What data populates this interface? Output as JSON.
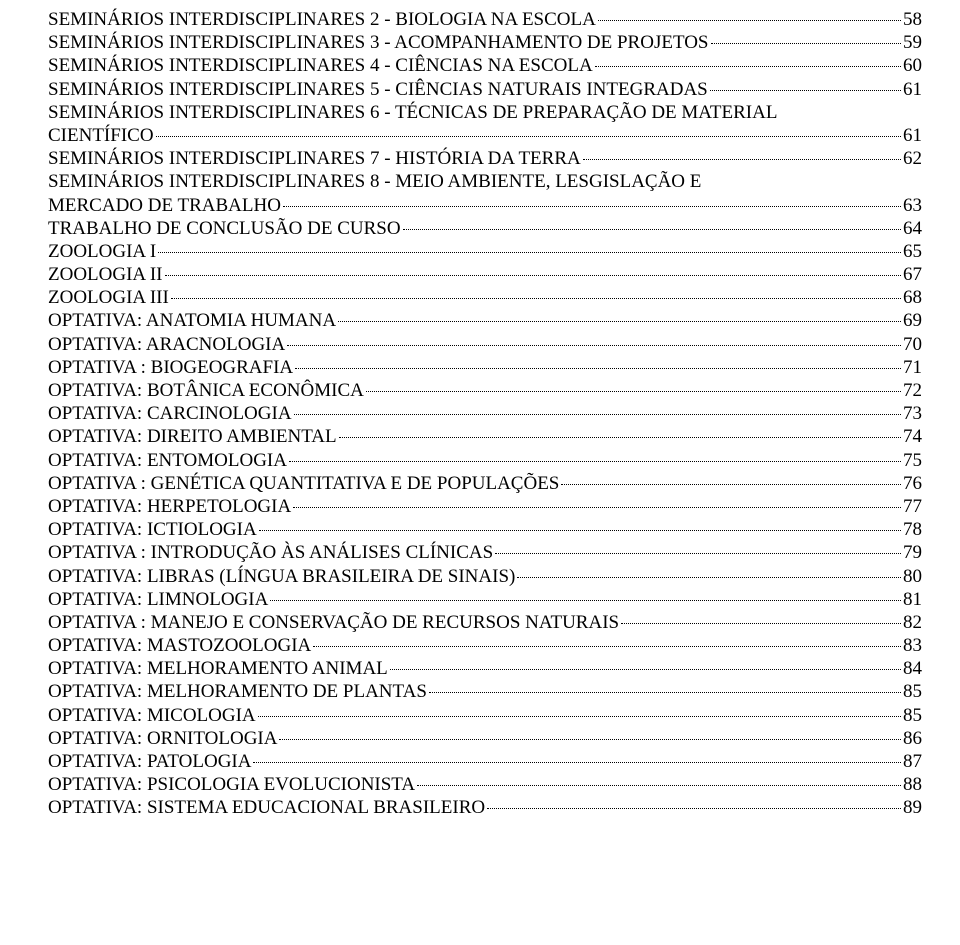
{
  "font_family": "Times New Roman",
  "font_size_pt": 14,
  "text_color": "#000000",
  "background_color": "#ffffff",
  "leader_style": "dotted",
  "entries": [
    {
      "title": "SEMINÁRIOS INTERDISCIPLINARES 2 - BIOLOGIA NA ESCOLA",
      "page": "58"
    },
    {
      "title": "SEMINÁRIOS INTERDISCIPLINARES 3 - ACOMPANHAMENTO DE PROJETOS",
      "page": "59"
    },
    {
      "title": "SEMINÁRIOS INTERDISCIPLINARES 4 - CIÊNCIAS NA ESCOLA",
      "page": "60"
    },
    {
      "title": "SEMINÁRIOS INTERDISCIPLINARES 5 - CIÊNCIAS NATURAIS INTEGRADAS",
      "page": "61"
    },
    {
      "title_line1": "SEMINÁRIOS INTERDISCIPLINARES 6 - TÉCNICAS DE PREPARAÇÃO DE MATERIAL",
      "title_line2": "CIENTÍFICO",
      "page": "61",
      "wrapped": true
    },
    {
      "title": "SEMINÁRIOS INTERDISCIPLINARES 7 - HISTÓRIA DA TERRA",
      "page": "62"
    },
    {
      "title_line1": "SEMINÁRIOS INTERDISCIPLINARES 8 - MEIO AMBIENTE, LESGISLAÇÃO E",
      "title_line2": "MERCADO DE TRABALHO",
      "page": "63",
      "wrapped": true
    },
    {
      "title": "TRABALHO DE CONCLUSÃO DE CURSO",
      "page": "64"
    },
    {
      "title": "ZOOLOGIA I",
      "page": "65"
    },
    {
      "title": "ZOOLOGIA II",
      "page": "67"
    },
    {
      "title": "ZOOLOGIA III",
      "page": "68"
    },
    {
      "title": "OPTATIVA: ANATOMIA HUMANA",
      "page": "69"
    },
    {
      "title": "OPTATIVA: ARACNOLOGIA",
      "page": "70"
    },
    {
      "title": "OPTATIVA : BIOGEOGRAFIA",
      "page": "71"
    },
    {
      "title": "OPTATIVA: BOTÂNICA ECONÔMICA",
      "page": "72"
    },
    {
      "title": "OPTATIVA: CARCINOLOGIA",
      "page": "73"
    },
    {
      "title": "OPTATIVA: DIREITO AMBIENTAL",
      "page": "74"
    },
    {
      "title": "OPTATIVA: ENTOMOLOGIA",
      "page": "75"
    },
    {
      "title": "OPTATIVA : GENÉTICA QUANTITATIVA E DE POPULAÇÕES",
      "page": "76"
    },
    {
      "title": "OPTATIVA: HERPETOLOGIA",
      "page": "77"
    },
    {
      "title": "OPTATIVA: ICTIOLOGIA",
      "page": "78"
    },
    {
      "title": "OPTATIVA : INTRODUÇÃO ÀS ANÁLISES CLÍNICAS",
      "page": "79"
    },
    {
      "title": "OPTATIVA: LIBRAS (LÍNGUA BRASILEIRA DE SINAIS)",
      "page": "80"
    },
    {
      "title": "OPTATIVA: LIMNOLOGIA",
      "page": "81"
    },
    {
      "title": "OPTATIVA : MANEJO E CONSERVAÇÃO DE RECURSOS NATURAIS",
      "page": "82"
    },
    {
      "title": "OPTATIVA: MASTOZOOLOGIA",
      "page": "83"
    },
    {
      "title": "OPTATIVA: MELHORAMENTO ANIMAL",
      "page": "84"
    },
    {
      "title": "OPTATIVA: MELHORAMENTO DE PLANTAS",
      "page": "85"
    },
    {
      "title": "OPTATIVA: MICOLOGIA",
      "page": "85"
    },
    {
      "title": "OPTATIVA: ORNITOLOGIA",
      "page": "86"
    },
    {
      "title": "OPTATIVA: PATOLOGIA",
      "page": "87"
    },
    {
      "title": "OPTATIVA: PSICOLOGIA EVOLUCIONISTA",
      "page": "88"
    },
    {
      "title": "OPTATIVA: SISTEMA EDUCACIONAL BRASILEIRO",
      "page": "89"
    }
  ]
}
